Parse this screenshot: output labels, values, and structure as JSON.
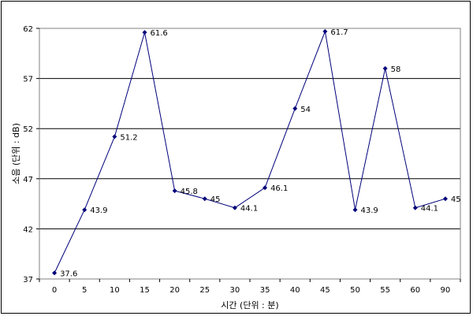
{
  "chart_data": {
    "type": "line",
    "title": "",
    "xlabel": "시간 (단위 : 분)",
    "ylabel": "소음 (단위 : dB)",
    "categories": [
      "0",
      "5",
      "10",
      "15",
      "20",
      "25",
      "30",
      "35",
      "40",
      "45",
      "50",
      "55",
      "60",
      "90"
    ],
    "series": [
      {
        "values": [
          37.6,
          43.9,
          51.2,
          61.6,
          45.8,
          45,
          44.1,
          46.1,
          54,
          61.7,
          43.9,
          58,
          44.1,
          45
        ],
        "data_labels": [
          "37.6",
          "43.9",
          "51.2",
          "61.6",
          "45.8",
          "45",
          "44.1",
          "46.1",
          "54",
          "61.7",
          "43.9",
          "58",
          "44.1",
          "45"
        ],
        "color": "#00007a"
      }
    ],
    "yticks": [
      "37",
      "42",
      "47",
      "52",
      "57",
      "62"
    ],
    "ylim": [
      37,
      62
    ],
    "grid": "horizontal",
    "legend": "none"
  }
}
